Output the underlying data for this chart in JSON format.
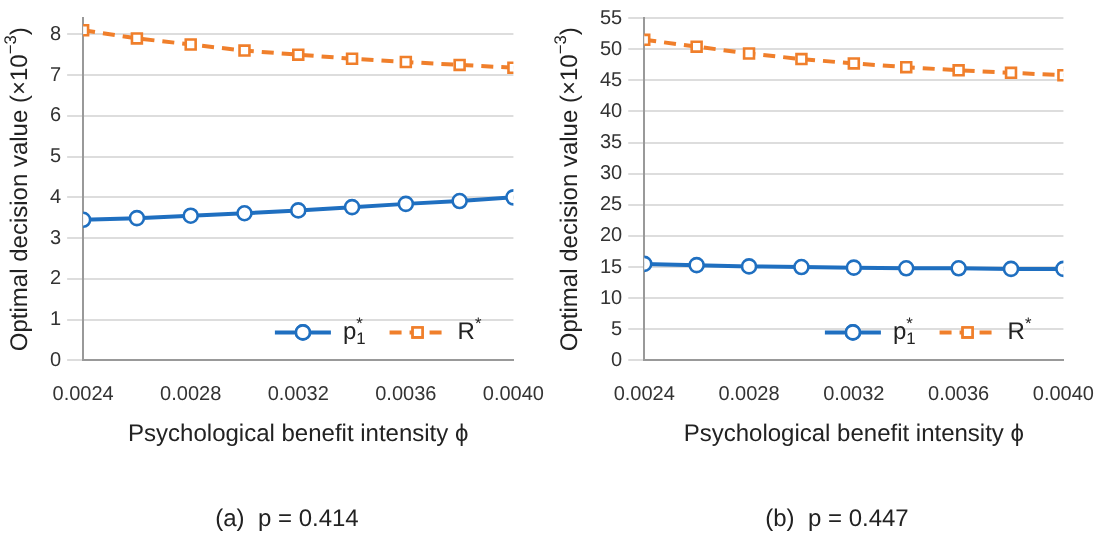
{
  "chart_data": [
    {
      "type": "line",
      "title": "(a)  p = 0.414",
      "xlabel": "Psychological benefit intensity ϕ",
      "ylabel": "Optimal decision value (×10$^{−3}$)",
      "x": [
        0.0024,
        0.0026,
        0.0028,
        0.003,
        0.0032,
        0.0034,
        0.0036,
        0.0038,
        0.004
      ],
      "series": [
        {
          "name": "p$_{1}$$^{*}$",
          "color": "#1f6fc0",
          "marker": "circle",
          "line_style": "solid",
          "values": [
            3.45,
            3.49,
            3.55,
            3.61,
            3.68,
            3.76,
            3.84,
            3.91,
            4.0
          ]
        },
        {
          "name": "R$^{*}$",
          "color": "#f07f2b",
          "marker": "square",
          "line_style": "dashed",
          "values": [
            8.1,
            7.9,
            7.75,
            7.6,
            7.5,
            7.4,
            7.32,
            7.25,
            7.18
          ]
        }
      ],
      "xlim": [
        0.0024,
        0.004
      ],
      "xticks": [
        {
          "value": 0.0024,
          "label": "0.0024"
        },
        {
          "value": 0.0028,
          "label": "0.0028"
        },
        {
          "value": 0.0032,
          "label": "0.0032"
        },
        {
          "value": 0.0036,
          "label": "0.0036"
        },
        {
          "value": 0.004,
          "label": "0.0040"
        }
      ],
      "ylim": [
        0,
        8.4
      ],
      "yticks": [
        0,
        1,
        2,
        3,
        4,
        5,
        6,
        7,
        8
      ],
      "grid": "y",
      "legend": "bottom right"
    },
    {
      "type": "line",
      "title": "(b)  p = 0.447",
      "xlabel": "Psychological benefit intensity ϕ",
      "ylabel": "Optimal decision value (×10$^{−3}$)",
      "x": [
        0.0024,
        0.0026,
        0.0028,
        0.003,
        0.0032,
        0.0034,
        0.0036,
        0.0038,
        0.004
      ],
      "series": [
        {
          "name": "p$_{1}$$^{*}$",
          "color": "#1f6fc0",
          "marker": "circle",
          "line_style": "solid",
          "values": [
            15.5,
            15.3,
            15.1,
            15.0,
            14.9,
            14.8,
            14.8,
            14.7,
            14.7
          ]
        },
        {
          "name": "R$^{*}$",
          "color": "#f07f2b",
          "marker": "square",
          "line_style": "dashed",
          "values": [
            51.5,
            50.4,
            49.3,
            48.4,
            47.7,
            47.1,
            46.6,
            46.2,
            45.8
          ]
        }
      ],
      "xlim": [
        0.0024,
        0.004
      ],
      "xticks": [
        {
          "value": 0.0024,
          "label": "0.0024"
        },
        {
          "value": 0.0028,
          "label": "0.0028"
        },
        {
          "value": 0.0032,
          "label": "0.0032"
        },
        {
          "value": 0.0036,
          "label": "0.0036"
        },
        {
          "value": 0.004,
          "label": "0.0040"
        }
      ],
      "ylim": [
        0,
        55
      ],
      "yticks": [
        0,
        5,
        10,
        15,
        20,
        25,
        30,
        35,
        40,
        45,
        50,
        55
      ],
      "grid": "y",
      "legend": "bottom right"
    }
  ]
}
